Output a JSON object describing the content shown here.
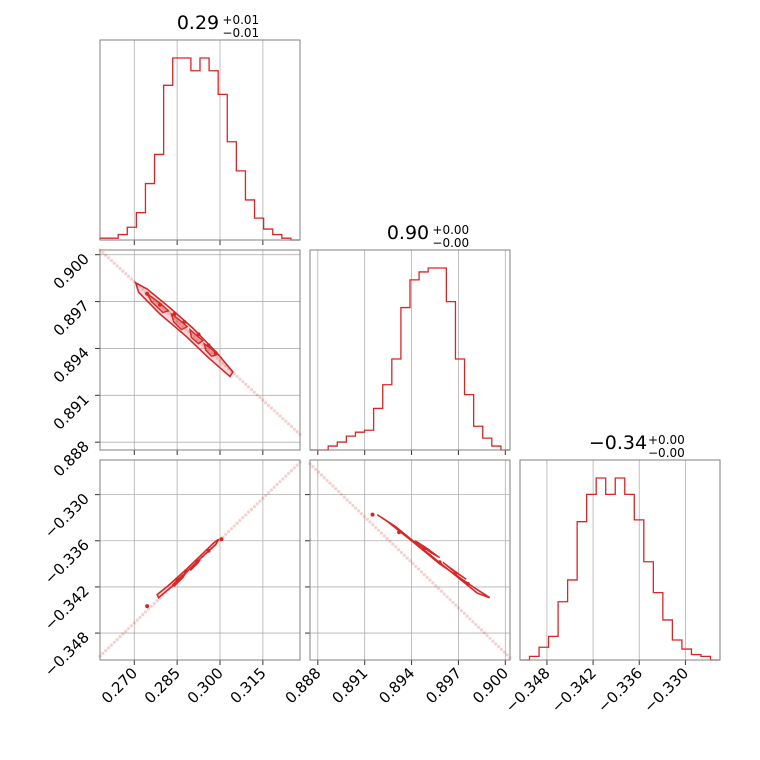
{
  "chart_data": {
    "type": "corner",
    "color": "#d62728",
    "grid": true,
    "parameters": [
      {
        "range": [
          0.258,
          0.328
        ],
        "ticks": [
          0.27,
          0.285,
          0.3,
          0.315
        ],
        "tick_labels": [
          "0.270",
          "0.285",
          "0.300",
          "0.315"
        ],
        "title": {
          "main": "0.29",
          "plus": "+0.01",
          "minus": "−0.01"
        },
        "hist_counts": [
          1,
          1,
          3,
          7,
          15,
          31,
          47,
          85,
          100,
          100,
          93,
          100,
          93,
          80,
          54,
          38,
          22,
          12,
          6,
          3,
          1,
          0
        ]
      },
      {
        "range": [
          0.8875,
          0.9003
        ],
        "ticks": [
          0.888,
          0.891,
          0.894,
          0.897,
          0.9
        ],
        "tick_labels": [
          "0.888",
          "0.891",
          "0.894",
          "0.897",
          "0.900"
        ],
        "title": {
          "main": "0.90",
          "plus": "+0.00",
          "minus": "−0.00"
        },
        "hist_counts": [
          0,
          0,
          2,
          4,
          7,
          9,
          10,
          21,
          33,
          46,
          72,
          86,
          90,
          92,
          92,
          75,
          46,
          28,
          12,
          6,
          2,
          0
        ]
      },
      {
        "range": [
          -0.3515,
          -0.3255
        ],
        "ticks": [
          -0.348,
          -0.342,
          -0.336,
          -0.33
        ],
        "tick_labels": [
          "−0.348",
          "−0.342",
          "−0.336",
          "−0.330"
        ],
        "title": {
          "main": "−0.34",
          "plus": "+0.00",
          "minus": "−0.00"
        },
        "hist_counts": [
          0,
          2,
          7,
          13,
          32,
          44,
          76,
          91,
          100,
          91,
          100,
          91,
          77,
          54,
          37,
          22,
          11,
          6,
          3,
          2,
          0
        ]
      }
    ],
    "pairs": [
      {
        "x_param": 0,
        "y_param": 1,
        "ridge_start": [
          0.258,
          0.9003
        ],
        "ridge_end": [
          0.328,
          0.8885
        ],
        "contour": [
          [
            0.2705,
            0.8982
          ],
          [
            0.2745,
            0.8978
          ],
          [
            0.2825,
            0.8966
          ],
          [
            0.2905,
            0.8953
          ],
          [
            0.299,
            0.8937
          ],
          [
            0.3045,
            0.8925
          ],
          [
            0.3035,
            0.8922
          ],
          [
            0.296,
            0.8934
          ],
          [
            0.288,
            0.8948
          ],
          [
            0.279,
            0.8962
          ],
          [
            0.2715,
            0.8976
          ]
        ],
        "inner_contours": [
          [
            [
              0.2745,
              0.8975
            ],
            [
              0.279,
              0.8969
            ],
            [
              0.282,
              0.8964
            ],
            [
              0.28,
              0.8963
            ],
            [
              0.276,
              0.897
            ]
          ],
          [
            [
              0.283,
              0.8962
            ],
            [
              0.286,
              0.8958
            ],
            [
              0.2885,
              0.8954
            ],
            [
              0.2865,
              0.8952
            ],
            [
              0.2838,
              0.8957
            ]
          ],
          [
            [
              0.2895,
              0.8952
            ],
            [
              0.292,
              0.8948
            ],
            [
              0.294,
              0.8945
            ],
            [
              0.2925,
              0.8943
            ],
            [
              0.29,
              0.8947
            ]
          ],
          [
            [
              0.2945,
              0.8943
            ],
            [
              0.2975,
              0.8939
            ],
            [
              0.299,
              0.8936
            ],
            [
              0.297,
              0.8935
            ],
            [
              0.295,
              0.8939
            ]
          ]
        ],
        "points": [
          [
            0.2745,
            0.8975
          ],
          [
            0.279,
            0.8968
          ],
          [
            0.284,
            0.8962
          ],
          [
            0.2875,
            0.8957
          ],
          [
            0.2925,
            0.8949
          ],
          [
            0.296,
            0.8942
          ],
          [
            0.2985,
            0.8937
          ]
        ]
      },
      {
        "x_param": 0,
        "y_param": 2,
        "ridge_start": [
          0.258,
          -0.351
        ],
        "ridge_end": [
          0.328,
          -0.3258
        ],
        "contour": [
          [
            0.278,
            -0.343
          ],
          [
            0.282,
            -0.3418
          ],
          [
            0.288,
            -0.3398
          ],
          [
            0.293,
            -0.338
          ],
          [
            0.298,
            -0.3362
          ],
          [
            0.2995,
            -0.3358
          ],
          [
            0.2985,
            -0.3365
          ],
          [
            0.294,
            -0.338
          ],
          [
            0.289,
            -0.3398
          ],
          [
            0.283,
            -0.342
          ],
          [
            0.2785,
            -0.3434
          ]
        ],
        "inner_contours": [
          [
            [
              0.2835,
              -0.3417
            ],
            [
              0.2865,
              -0.3406
            ],
            [
              0.288,
              -0.3402
            ],
            [
              0.287,
              -0.3408
            ],
            [
              0.284,
              -0.3419
            ]
          ],
          [
            [
              0.2895,
              -0.3397
            ],
            [
              0.2915,
              -0.339
            ],
            [
              0.293,
              -0.3385
            ],
            [
              0.292,
              -0.339
            ],
            [
              0.2898,
              -0.3398
            ]
          ]
        ],
        "points": [
          [
            0.2745,
            -0.3445
          ],
          [
            0.285,
            -0.341
          ],
          [
            0.288,
            -0.34
          ],
          [
            0.292,
            -0.3387
          ],
          [
            0.296,
            -0.3373
          ],
          [
            0.3005,
            -0.3358
          ]
        ]
      },
      {
        "x_param": 1,
        "y_param": 2,
        "ridge_start": [
          0.8875,
          -0.326
        ],
        "ridge_end": [
          0.9003,
          -0.3512
        ],
        "contour": [
          [
            0.8918,
            -0.3326
          ],
          [
            0.893,
            -0.3342
          ],
          [
            0.8948,
            -0.3372
          ],
          [
            0.8965,
            -0.34
          ],
          [
            0.8982,
            -0.3428
          ],
          [
            0.899,
            -0.3434
          ],
          [
            0.8978,
            -0.3418
          ],
          [
            0.8958,
            -0.339
          ],
          [
            0.894,
            -0.336
          ],
          [
            0.8924,
            -0.3334
          ]
        ],
        "inner_contours": [
          [
            [
              0.8942,
              -0.336
            ],
            [
              0.8952,
              -0.3375
            ],
            [
              0.8958,
              -0.3382
            ],
            [
              0.895,
              -0.337
            ],
            [
              0.8944,
              -0.3362
            ]
          ],
          [
            [
              0.896,
              -0.3388
            ],
            [
              0.8968,
              -0.34
            ],
            [
              0.8975,
              -0.341
            ],
            [
              0.8966,
              -0.3398
            ]
          ]
        ],
        "points": [
          [
            0.8915,
            -0.3326
          ],
          [
            0.8932,
            -0.3349
          ],
          [
            0.8948,
            -0.337
          ],
          [
            0.8958,
            -0.3388
          ],
          [
            0.8968,
            -0.3402
          ],
          [
            0.8976,
            -0.3416
          ]
        ]
      }
    ]
  }
}
